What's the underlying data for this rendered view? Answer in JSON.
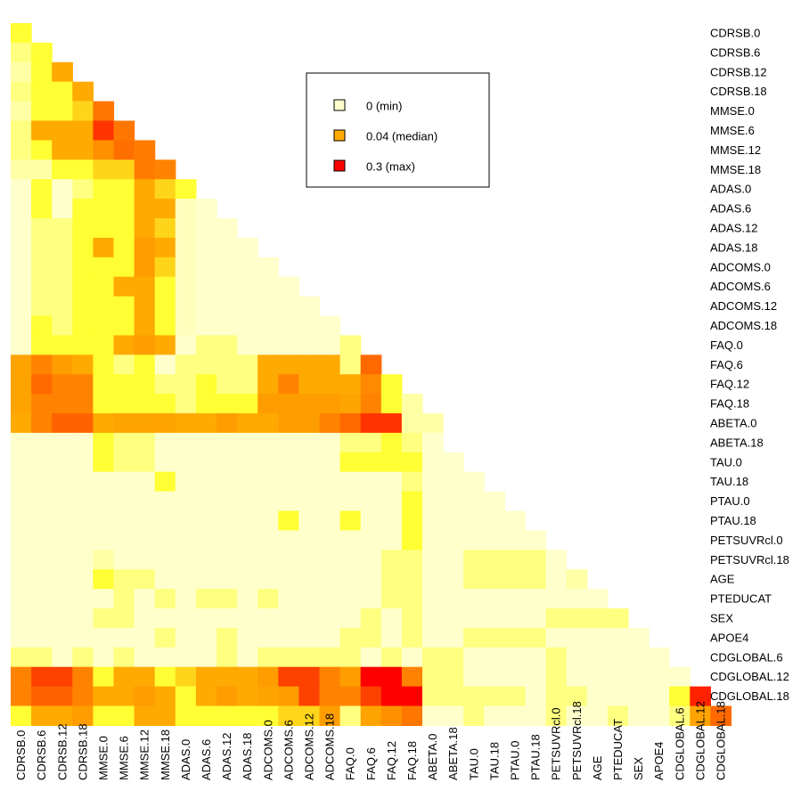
{
  "chart_data": {
    "type": "heatmap",
    "shape": "lower-triangular",
    "labels": [
      "CDRSB.0",
      "CDRSB.6",
      "CDRSB.12",
      "CDRSB.18",
      "MMSE.0",
      "MMSE.6",
      "MMSE.12",
      "MMSE.18",
      "ADAS.0",
      "ADAS.6",
      "ADAS.12",
      "ADAS.18",
      "ADCOMS.0",
      "ADCOMS.6",
      "ADCOMS.12",
      "ADCOMS.18",
      "FAQ.0",
      "FAQ.6",
      "FAQ.12",
      "FAQ.18",
      "ABETA.0",
      "ABETA.18",
      "TAU.0",
      "TAU.18",
      "PTAU.0",
      "PTAU.18",
      "PETSUVRcl.0",
      "PETSUVRcl.18",
      "AGE",
      "PTEDUCAT",
      "SEX",
      "APOE4",
      "CDGLOBAL.6",
      "CDGLOBAL.12",
      "CDGLOBAL.18"
    ],
    "color_scale": {
      "min": 0,
      "median": 0.04,
      "max": 0.3,
      "colors": [
        "#ffffcc",
        "#ffff33",
        "#ffaa00",
        "#ff0000"
      ]
    },
    "legend": {
      "placement": "top-center",
      "entries": [
        {
          "label": "0 (min)",
          "value": 0,
          "color": "#ffffcc"
        },
        {
          "label": "0.04 (median)",
          "value": 0.04,
          "color": "#ffaa00"
        },
        {
          "label": "0.3 (max)",
          "value": 0.3,
          "color": "#ff0000"
        }
      ]
    },
    "rows": [
      [
        0.02
      ],
      [
        0.01,
        0.02
      ],
      [
        0.005,
        0.02,
        0.04
      ],
      [
        0.01,
        0.02,
        0.02,
        0.04
      ],
      [
        0.005,
        0.02,
        0.02,
        0.03,
        0.12
      ],
      [
        0.01,
        0.04,
        0.04,
        0.04,
        0.22,
        0.12
      ],
      [
        0.01,
        0.02,
        0.04,
        0.04,
        0.08,
        0.13,
        0.11
      ],
      [
        0.005,
        0.005,
        0.02,
        0.02,
        0.03,
        0.03,
        0.11,
        0.1
      ],
      [
        0.0,
        0.02,
        0.0,
        0.01,
        0.02,
        0.02,
        0.04,
        0.03,
        0.02
      ],
      [
        0.0,
        0.02,
        0.0,
        0.02,
        0.02,
        0.02,
        0.04,
        0.04,
        0.002,
        0.0
      ],
      [
        0.0,
        0.01,
        0.01,
        0.02,
        0.02,
        0.02,
        0.04,
        0.03,
        0.002,
        0.0,
        0.0
      ],
      [
        0.0,
        0.01,
        0.01,
        0.02,
        0.04,
        0.02,
        0.06,
        0.04,
        0.002,
        0.0,
        0.0,
        0.0
      ],
      [
        0.0,
        0.01,
        0.01,
        0.02,
        0.02,
        0.02,
        0.06,
        0.03,
        0.002,
        0.0,
        0.0,
        0.0,
        0.0
      ],
      [
        0.0,
        0.01,
        0.01,
        0.02,
        0.02,
        0.04,
        0.04,
        0.02,
        0.002,
        0.0,
        0.0,
        0.0,
        0.0,
        0.0
      ],
      [
        0.0,
        0.01,
        0.01,
        0.02,
        0.02,
        0.02,
        0.04,
        0.02,
        0.002,
        0.0,
        0.0,
        0.0,
        0.0,
        0.0,
        0.0
      ],
      [
        0.0,
        0.02,
        0.01,
        0.02,
        0.02,
        0.02,
        0.04,
        0.02,
        0.002,
        0.0,
        0.0,
        0.0,
        0.0,
        0.0,
        0.0,
        0.0
      ],
      [
        0.0,
        0.02,
        0.02,
        0.02,
        0.02,
        0.04,
        0.06,
        0.04,
        0.0,
        0.01,
        0.01,
        0.0,
        0.0,
        0.0,
        0.0,
        0.0,
        0.01
      ],
      [
        0.05,
        0.1,
        0.06,
        0.04,
        0.02,
        0.01,
        0.02,
        0.0,
        0.01,
        0.01,
        0.01,
        0.01,
        0.04,
        0.04,
        0.04,
        0.04,
        0.01,
        0.14
      ],
      [
        0.05,
        0.14,
        0.1,
        0.1,
        0.02,
        0.02,
        0.02,
        0.01,
        0.01,
        0.02,
        0.01,
        0.01,
        0.04,
        0.1,
        0.04,
        0.04,
        0.04,
        0.09,
        0.02
      ],
      [
        0.05,
        0.1,
        0.1,
        0.1,
        0.02,
        0.02,
        0.02,
        0.02,
        0.01,
        0.02,
        0.02,
        0.02,
        0.06,
        0.06,
        0.06,
        0.06,
        0.05,
        0.1,
        0.02,
        0.005
      ],
      [
        0.04,
        0.1,
        0.15,
        0.15,
        0.04,
        0.05,
        0.05,
        0.05,
        0.04,
        0.04,
        0.06,
        0.04,
        0.04,
        0.06,
        0.06,
        0.1,
        0.14,
        0.22,
        0.22,
        0.005,
        0.005
      ],
      [
        0.0,
        0.0,
        0.0,
        0.0,
        0.02,
        0.01,
        0.01,
        0.0,
        0.0,
        0.0,
        0.0,
        0.0,
        0.0,
        0.0,
        0.0,
        0.0,
        0.01,
        0.01,
        0.02,
        0.01,
        0.0
      ],
      [
        0.0,
        0.0,
        0.0,
        0.0,
        0.02,
        0.01,
        0.01,
        0.0,
        0.0,
        0.0,
        0.0,
        0.0,
        0.0,
        0.0,
        0.0,
        0.0,
        0.02,
        0.02,
        0.02,
        0.02,
        0.0,
        0.0
      ],
      [
        0.0,
        0.0,
        0.0,
        0.0,
        0.0,
        0.0,
        0.0,
        0.02,
        0.0,
        0.0,
        0.0,
        0.0,
        0.0,
        0.0,
        0.0,
        0.0,
        0.0,
        0.0,
        0.0,
        0.01,
        0.0,
        0.0,
        0.0
      ],
      [
        0.0,
        0.0,
        0.0,
        0.0,
        0.0,
        0.0,
        0.0,
        0.0,
        0.0,
        0.0,
        0.0,
        0.0,
        0.0,
        0.0,
        0.0,
        0.0,
        0.0,
        0.0,
        0.0,
        0.02,
        0.0,
        0.0,
        0.0,
        0.0
      ],
      [
        0.0,
        0.0,
        0.0,
        0.0,
        0.0,
        0.0,
        0.0,
        0.0,
        0.0,
        0.0,
        0.0,
        0.0,
        0.0,
        0.02,
        0.0,
        0.0,
        0.02,
        0.0,
        0.0,
        0.02,
        0.0,
        0.0,
        0.0,
        0.0,
        0.0
      ],
      [
        0.0,
        0.0,
        0.0,
        0.0,
        0.0,
        0.0,
        0.0,
        0.0,
        0.0,
        0.0,
        0.0,
        0.0,
        0.0,
        0.0,
        0.0,
        0.0,
        0.0,
        0.0,
        0.0,
        0.02,
        0.0,
        0.0,
        0.0,
        0.0,
        0.0,
        0.0
      ],
      [
        0.0,
        0.0,
        0.0,
        0.0,
        0.005,
        0.0,
        0.0,
        0.0,
        0.0,
        0.0,
        0.0,
        0.0,
        0.0,
        0.0,
        0.0,
        0.0,
        0.0,
        0.0,
        0.01,
        0.01,
        0.0,
        0.0,
        0.01,
        0.01,
        0.01,
        0.01,
        0.0
      ],
      [
        0.0,
        0.0,
        0.0,
        0.0,
        0.02,
        0.01,
        0.01,
        0.0,
        0.0,
        0.0,
        0.0,
        0.0,
        0.0,
        0.0,
        0.0,
        0.0,
        0.0,
        0.0,
        0.01,
        0.01,
        0.0,
        0.0,
        0.01,
        0.01,
        0.01,
        0.01,
        0.0,
        0.005
      ],
      [
        0.0,
        0.0,
        0.0,
        0.0,
        0.0,
        0.01,
        0.0,
        0.01,
        0.0,
        0.01,
        0.01,
        0.0,
        0.01,
        0.0,
        0.0,
        0.0,
        0.0,
        0.0,
        0.01,
        0.01,
        0.0,
        0.0,
        0.0,
        0.0,
        0.0,
        0.0,
        0.0,
        0.0,
        0.0
      ],
      [
        0.0,
        0.0,
        0.0,
        0.0,
        0.01,
        0.01,
        0.0,
        0.0,
        0.0,
        0.0,
        0.0,
        0.0,
        0.0,
        0.0,
        0.0,
        0.0,
        0.0,
        0.01,
        0.0,
        0.01,
        0.0,
        0.0,
        0.0,
        0.0,
        0.0,
        0.0,
        0.01,
        0.01,
        0.01,
        0.01
      ],
      [
        0.0,
        0.0,
        0.0,
        0.0,
        0.0,
        0.0,
        0.0,
        0.01,
        0.0,
        0.0,
        0.01,
        0.0,
        0.0,
        0.0,
        0.0,
        0.0,
        0.01,
        0.01,
        0.0,
        0.01,
        0.0,
        0.0,
        0.01,
        0.01,
        0.01,
        0.01,
        0.0,
        0.0,
        0.0,
        0.0,
        0.0
      ],
      [
        0.01,
        0.01,
        0.0,
        0.01,
        0.0,
        0.01,
        0.0,
        0.0,
        0.0,
        0.0,
        0.01,
        0.0,
        0.01,
        0.01,
        0.01,
        0.01,
        0.01,
        0.0,
        0.01,
        0.0,
        0.01,
        0.01,
        0.0,
        0.0,
        0.0,
        0.0,
        0.01,
        0.0,
        0.0,
        0.0,
        0.0,
        0.0
      ],
      [
        0.1,
        0.2,
        0.2,
        0.1,
        0.02,
        0.04,
        0.04,
        0.02,
        0.03,
        0.04,
        0.04,
        0.04,
        0.06,
        0.2,
        0.2,
        0.1,
        0.06,
        0.3,
        0.3,
        0.1,
        0.01,
        0.01,
        0.0,
        0.0,
        0.0,
        0.0,
        0.01,
        0.0,
        0.0,
        0.0,
        0.0,
        0.0,
        0.0
      ],
      [
        0.1,
        0.15,
        0.15,
        0.1,
        0.04,
        0.04,
        0.06,
        0.04,
        0.02,
        0.04,
        0.06,
        0.04,
        0.05,
        0.06,
        0.2,
        0.1,
        0.1,
        0.2,
        0.3,
        0.3,
        0.01,
        0.01,
        0.01,
        0.01,
        0.01,
        0.0,
        0.01,
        0.01,
        0.0,
        0.0,
        0.0,
        0.0,
        0.02,
        0.25
      ],
      [
        0.02,
        0.04,
        0.04,
        0.06,
        0.02,
        0.02,
        0.04,
        0.04,
        0.02,
        0.02,
        0.02,
        0.02,
        0.02,
        0.03,
        0.03,
        0.06,
        0.01,
        0.05,
        0.08,
        0.12,
        0.0,
        0.0,
        0.01,
        0.0,
        0.0,
        0.0,
        0.01,
        0.0,
        0.0,
        0.01,
        0.0,
        0.0,
        0.01,
        0.05,
        0.14
      ]
    ]
  }
}
